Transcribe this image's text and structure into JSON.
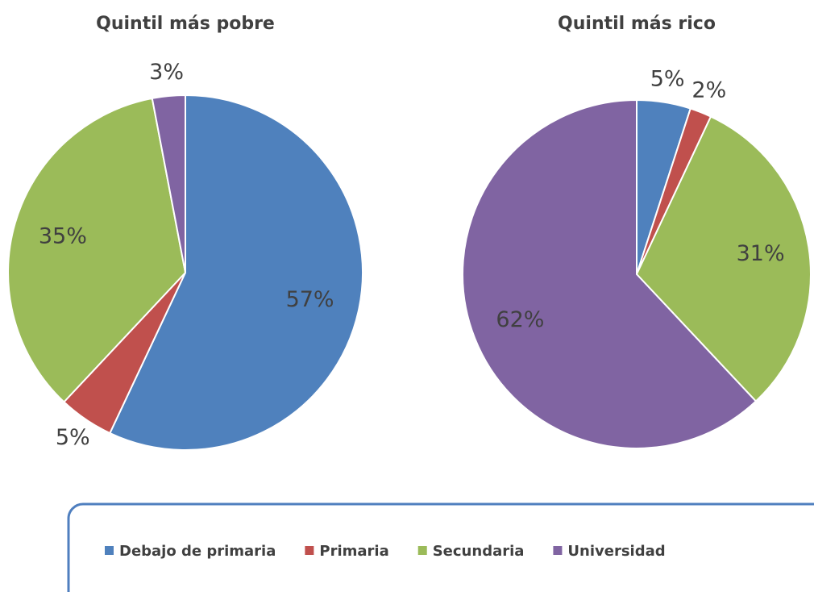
{
  "categories": [
    "Debajo de primaria",
    "Primaria",
    "Secundaria",
    "Universidad"
  ],
  "colors": [
    "#4f81bd",
    "#c0504d",
    "#9bbb59",
    "#8064a2"
  ],
  "chart_data": [
    {
      "type": "pie",
      "title": "Quintil más pobre",
      "values": [
        57,
        5,
        35,
        3
      ],
      "value_labels": [
        "57%",
        "5%",
        "35%",
        "3%"
      ]
    },
    {
      "type": "pie",
      "title": "Quintil más rico",
      "values": [
        5,
        2,
        31,
        62
      ],
      "value_labels": [
        "5%",
        "2%",
        "31%",
        "62%"
      ]
    }
  ]
}
